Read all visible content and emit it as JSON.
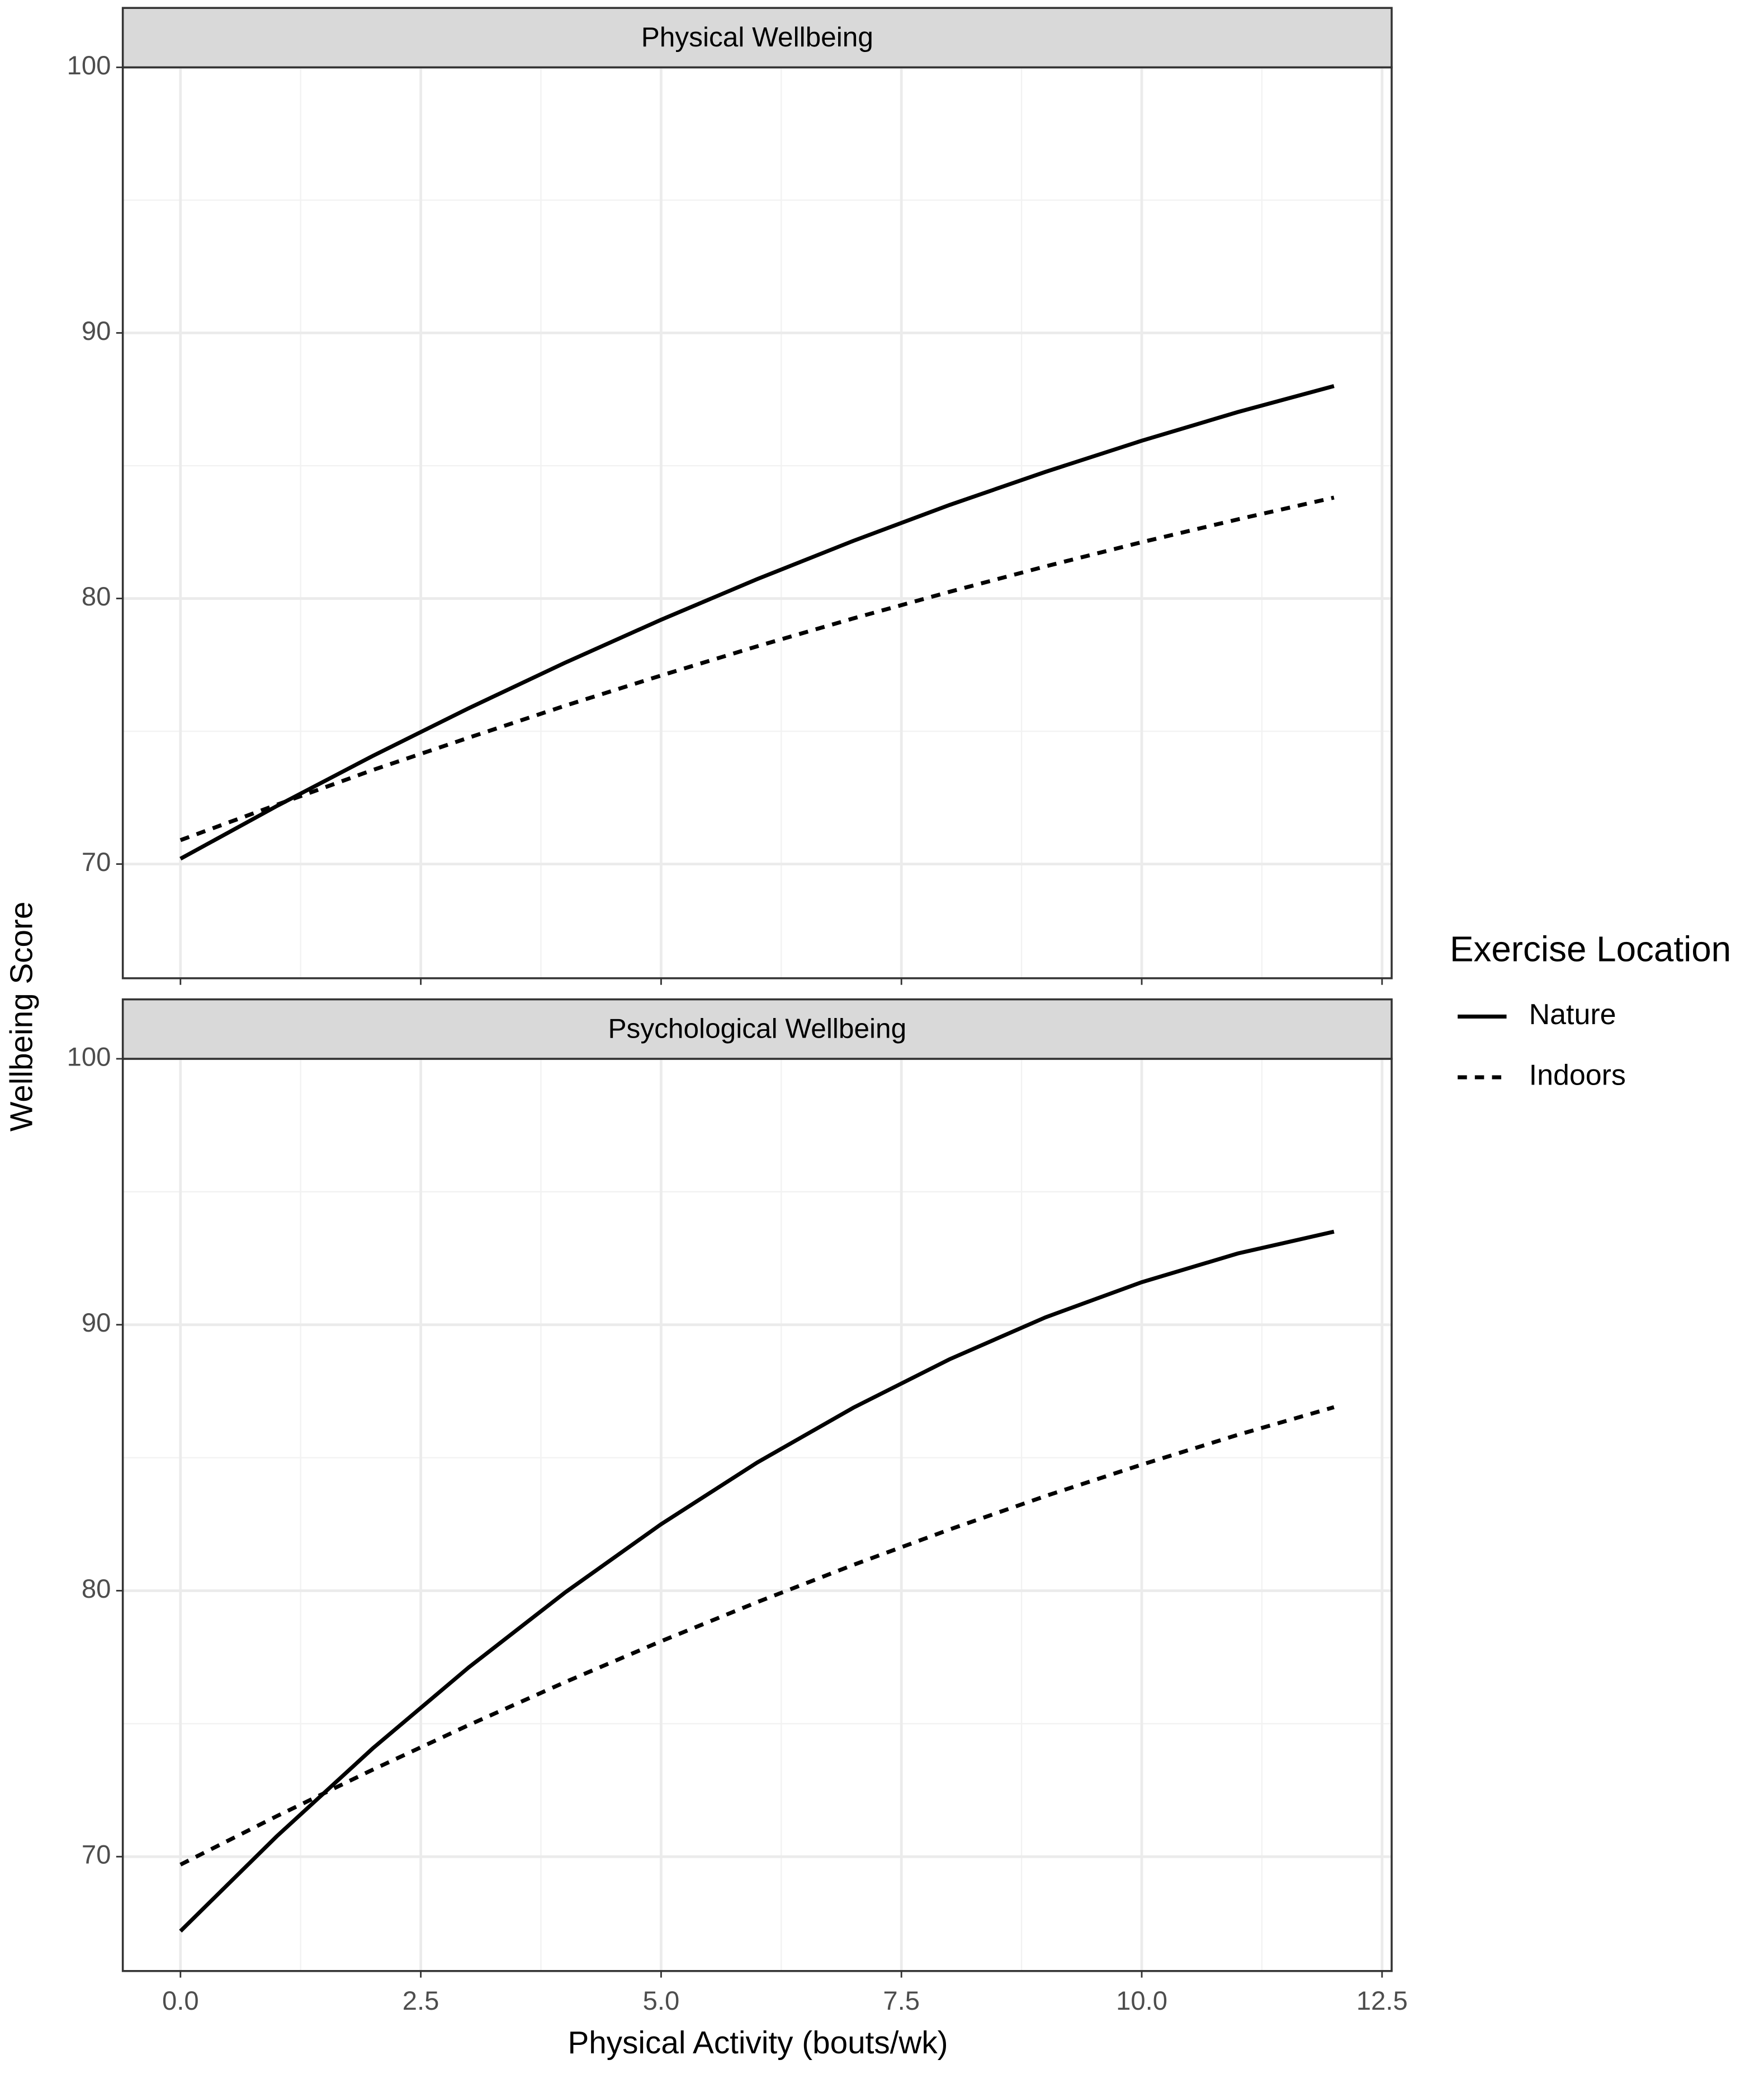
{
  "chart_data": [
    {
      "type": "line",
      "title": "Physical Wellbeing",
      "y_label": "Wellbeing Score",
      "legend_title": "Exercise Location",
      "x": [
        0,
        1,
        2,
        3,
        4,
        5,
        6,
        7,
        8,
        9,
        10,
        11,
        12
      ],
      "series": [
        {
          "name": "Nature",
          "color": "#000000",
          "dash": "solid",
          "values": [
            70.2,
            72.18,
            74.07,
            75.87,
            77.58,
            79.2,
            80.73,
            82.17,
            83.52,
            84.77,
            85.94,
            87.02,
            88.0
          ]
        },
        {
          "name": "Indoors",
          "color": "#000000",
          "dash": "dashed",
          "values": [
            70.9,
            72.23,
            73.54,
            74.76,
            75.96,
            77.1,
            78.2,
            79.25,
            80.25,
            81.21,
            82.12,
            82.98,
            83.8
          ]
        }
      ],
      "xlim": [
        -0.6,
        12.6
      ],
      "ylim": [
        65.7,
        100.0
      ],
      "xticks": [
        0,
        2.5,
        5,
        7.5,
        10,
        12.5
      ],
      "yticks": [
        70,
        80,
        90,
        100
      ],
      "grid": true
    },
    {
      "type": "line",
      "title": "Psychological Wellbeing",
      "x_label": "Physical Activity (bouts/wk)",
      "x": [
        0,
        1,
        2,
        3,
        4,
        5,
        6,
        7,
        8,
        9,
        10,
        11,
        12
      ],
      "series": [
        {
          "color": "#000000",
          "dash": "solid",
          "values": [
            67.2,
            70.76,
            74.07,
            77.12,
            79.93,
            82.5,
            84.82,
            86.88,
            88.7,
            90.28,
            91.6,
            92.68,
            93.5
          ]
        },
        {
          "color": "#000000",
          "dash": "dashed",
          "values": [
            69.7,
            71.52,
            73.27,
            74.95,
            76.56,
            78.1,
            79.57,
            80.97,
            82.3,
            83.56,
            84.74,
            85.86,
            86.9
          ]
        }
      ],
      "xlim": [
        -0.6,
        12.6
      ],
      "ylim": [
        65.7,
        100.0
      ],
      "xticks": [
        {
          "value": 0,
          "label": "0.0"
        },
        2.5,
        {
          "value": 5,
          "label": "5.0"
        },
        7.5,
        {
          "value": 10,
          "label": "10.0"
        },
        12.5
      ],
      "yticks": [
        70,
        80,
        90,
        100
      ],
      "grid": true
    }
  ]
}
